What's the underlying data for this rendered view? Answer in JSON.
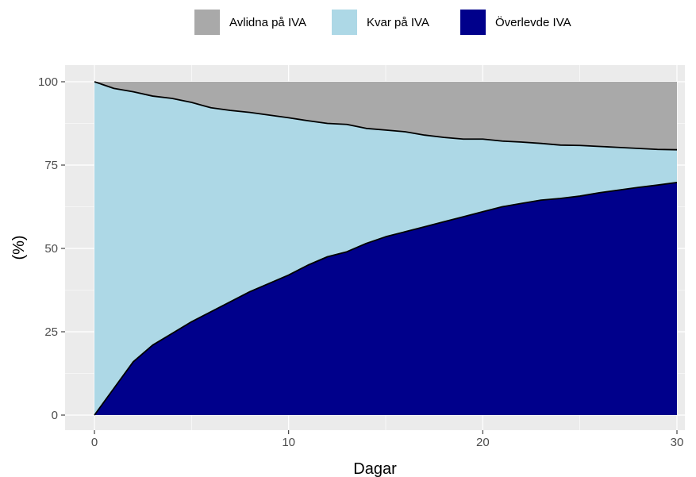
{
  "chart_data": {
    "type": "area",
    "stacked": true,
    "xlabel": "Dagar",
    "ylabel": "(%)",
    "xlim": [
      0,
      30
    ],
    "ylim": [
      0,
      100
    ],
    "x_ticks": [
      0,
      10,
      20,
      30
    ],
    "y_ticks": [
      0,
      25,
      50,
      75,
      100
    ],
    "grid": true,
    "legend_position": "top",
    "x": [
      0,
      1,
      2,
      3,
      4,
      5,
      6,
      7,
      8,
      9,
      10,
      11,
      12,
      13,
      14,
      15,
      16,
      17,
      18,
      19,
      20,
      21,
      22,
      23,
      24,
      25,
      26,
      27,
      28,
      29,
      30
    ],
    "series": [
      {
        "name": "Överlevde IVA",
        "color": "#00008b",
        "values": [
          0,
          8,
          16,
          21,
          24.5,
          28,
          31,
          34,
          37,
          39.5,
          42,
          45,
          47.5,
          49,
          51.5,
          53.5,
          55,
          56.5,
          58,
          59.5,
          61,
          62.5,
          63.5,
          64.5,
          65,
          65.7,
          66.7,
          67.5,
          68.3,
          69,
          69.8
        ]
      },
      {
        "name": "Kvar på IVA",
        "color": "#add8e6",
        "values": [
          100,
          90,
          81,
          74.7,
          70.5,
          65.8,
          61.2,
          57.4,
          53.8,
          50.5,
          47.2,
          43.3,
          40,
          38.2,
          34.5,
          32,
          30,
          27.5,
          25.3,
          23.3,
          21.8,
          19.7,
          18.4,
          17,
          16,
          15.2,
          13.9,
          12.8,
          11.7,
          10.7,
          9.8
        ]
      },
      {
        "name": "Avlidna på IVA",
        "color": "#a9a9a9",
        "values": [
          0,
          2,
          3,
          4.3,
          5,
          6.2,
          7.8,
          8.6,
          9.2,
          10,
          10.8,
          11.7,
          12.5,
          12.8,
          14,
          14.5,
          15,
          16,
          16.7,
          17.2,
          17.2,
          17.8,
          18.1,
          18.5,
          19,
          19.1,
          19.4,
          19.7,
          20,
          20.3,
          20.4
        ]
      }
    ],
    "legend_order": [
      "Avlidna på IVA",
      "Kvar på IVA",
      "Överlevde IVA"
    ]
  }
}
